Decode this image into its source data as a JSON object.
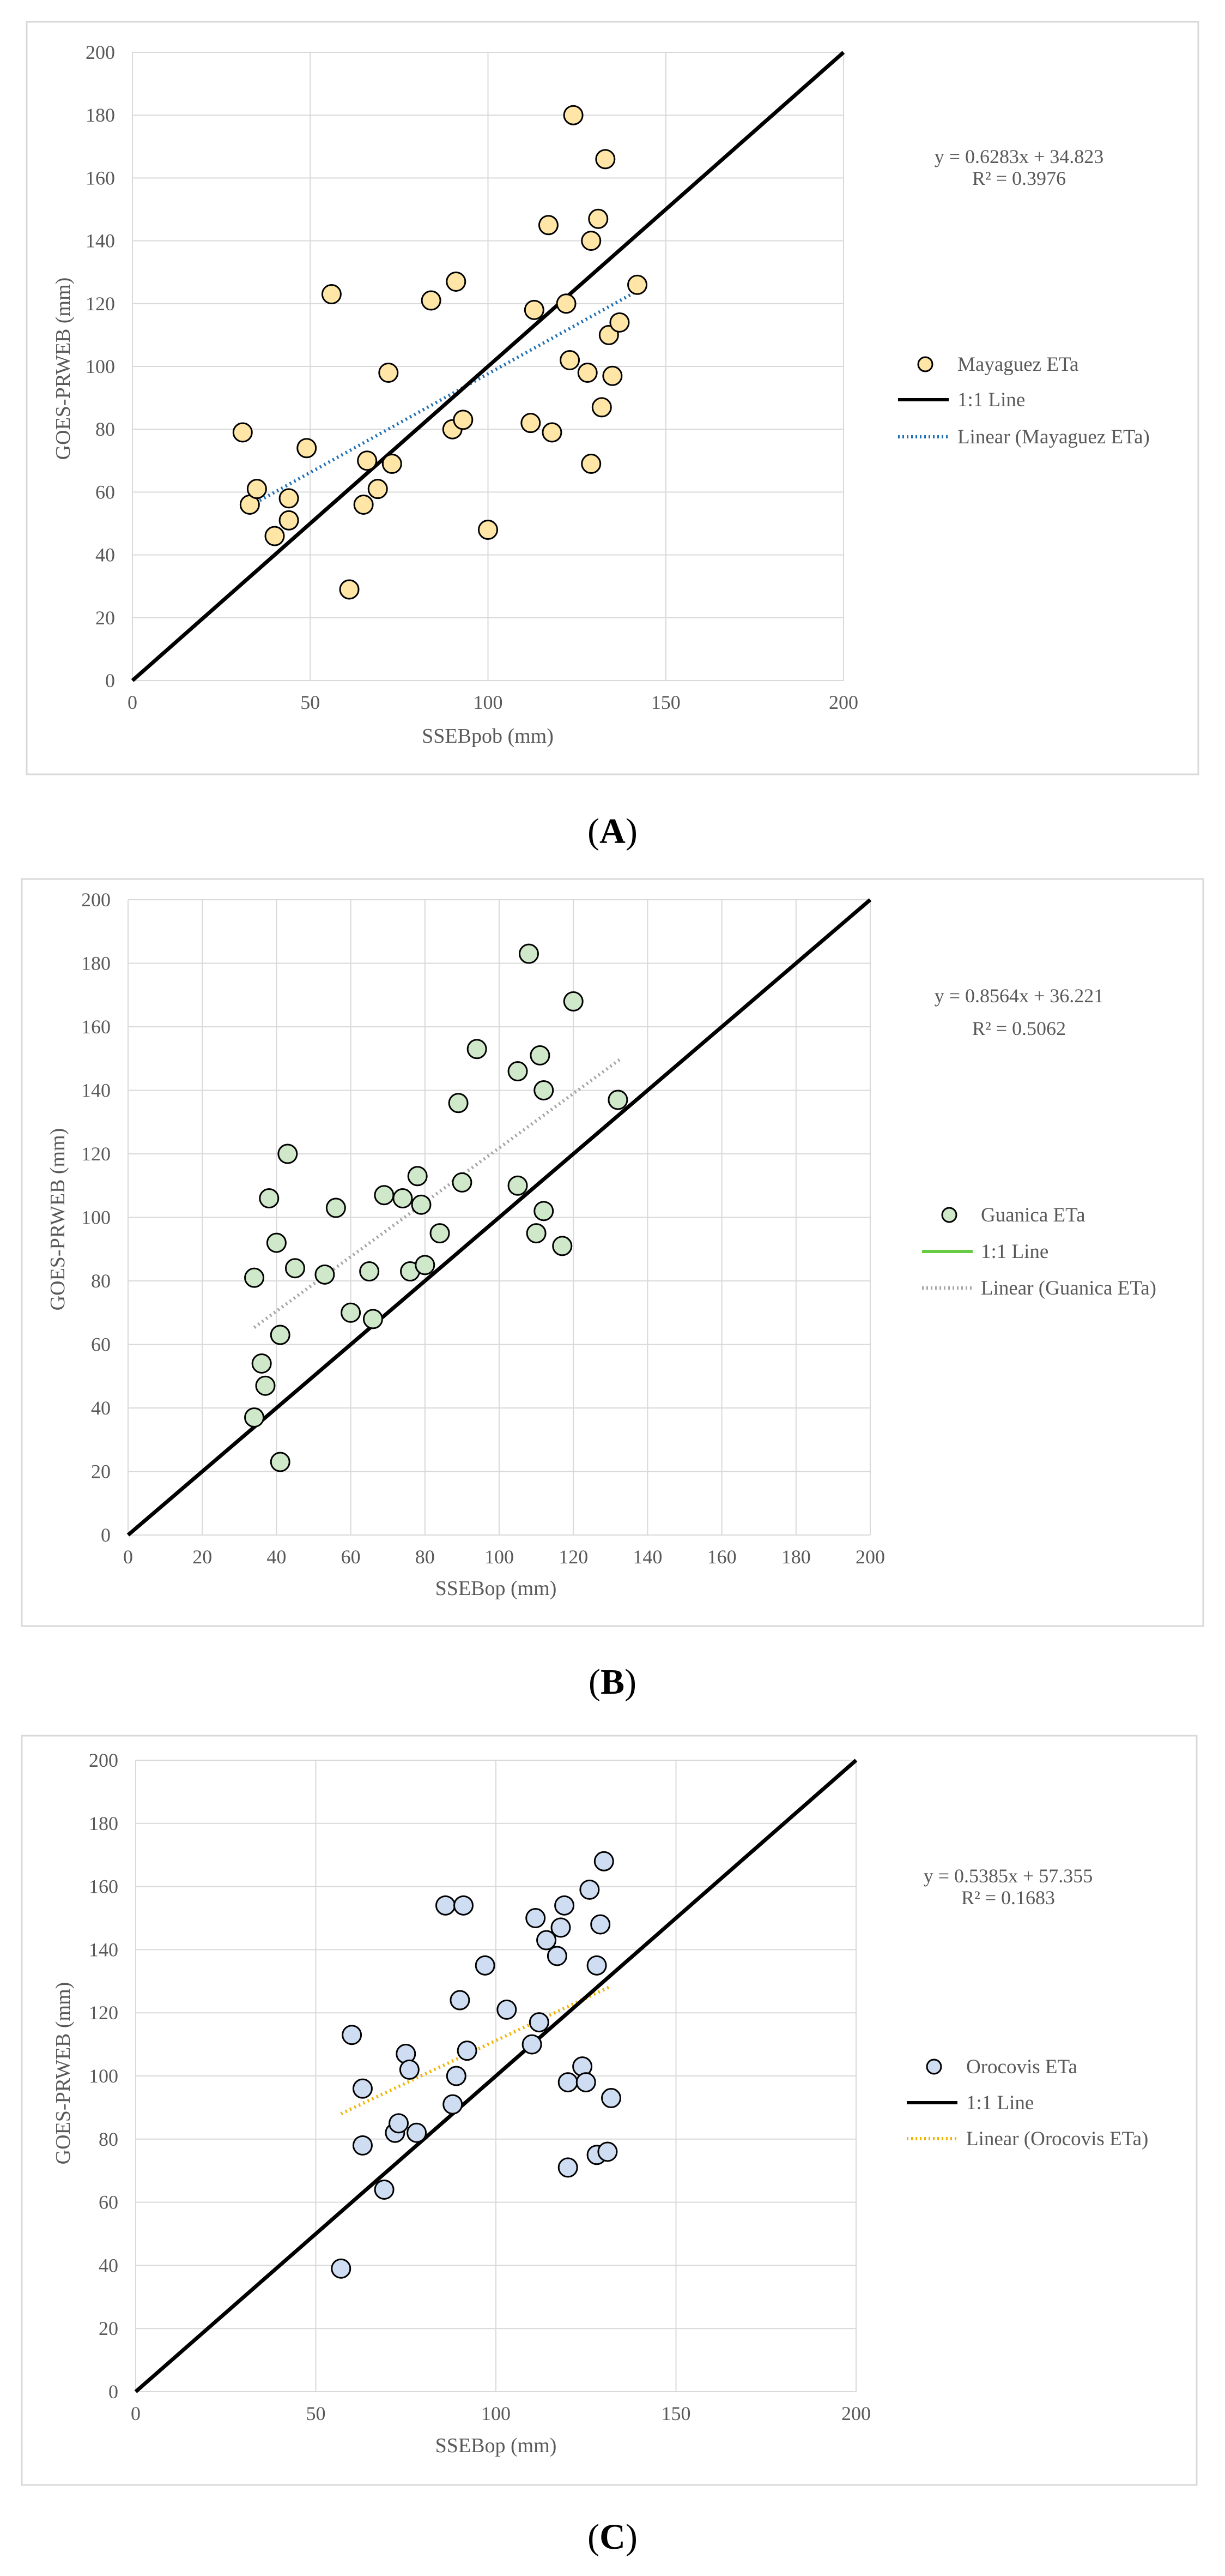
{
  "chart_data": [
    {
      "panel": "A",
      "caption_open": "(",
      "caption_letter": "A",
      "caption_close": ")",
      "type": "scatter",
      "title": "",
      "xlabel": "SSEBpob (mm)",
      "ylabel": "GOES-PRWEB (mm)",
      "xlim": [
        0,
        200
      ],
      "ylim": [
        0,
        200
      ],
      "xticks": [
        0,
        50,
        100,
        150,
        200
      ],
      "yticks": [
        0,
        20,
        40,
        60,
        80,
        100,
        120,
        140,
        160,
        180,
        200
      ],
      "grid": true,
      "equation": "y = 0.6283x + 34.823",
      "r2": "R² = 0.3976",
      "slope": 0.6283,
      "intercept": 34.823,
      "trend_range": [
        31,
        142
      ],
      "legend": {
        "points": "Mayaguez ETa",
        "line": "1:1 Line",
        "trend": "Linear (Mayaguez ETa)"
      },
      "colors": {
        "marker": "#ffe6a6",
        "trend": "#1f6fb5",
        "legend_line": "#000000"
      },
      "points": [
        [
          31,
          79
        ],
        [
          33,
          56
        ],
        [
          35,
          61
        ],
        [
          40,
          46
        ],
        [
          44,
          58
        ],
        [
          44,
          51
        ],
        [
          49,
          74
        ],
        [
          56,
          123
        ],
        [
          61,
          29
        ],
        [
          65,
          56
        ],
        [
          66,
          70
        ],
        [
          69,
          61
        ],
        [
          72,
          98
        ],
        [
          73,
          69
        ],
        [
          84,
          121
        ],
        [
          90,
          80
        ],
        [
          91,
          127
        ],
        [
          93,
          83
        ],
        [
          100,
          48
        ],
        [
          112,
          82
        ],
        [
          113,
          118
        ],
        [
          117,
          145
        ],
        [
          118,
          79
        ],
        [
          122,
          120
        ],
        [
          123,
          102
        ],
        [
          124,
          180
        ],
        [
          128,
          98
        ],
        [
          129,
          69
        ],
        [
          129,
          140
        ],
        [
          131,
          147
        ],
        [
          132,
          87
        ],
        [
          133,
          166
        ],
        [
          134,
          110
        ],
        [
          135,
          97
        ],
        [
          137,
          114
        ],
        [
          142,
          126
        ]
      ]
    },
    {
      "panel": "B",
      "caption_open": "(",
      "caption_letter": "B",
      "caption_close": ")",
      "type": "scatter",
      "title": "",
      "xlabel": "SSEBop (mm)",
      "ylabel": "GOES-PRWEB (mm)",
      "xlim": [
        0,
        200
      ],
      "ylim": [
        0,
        200
      ],
      "xticks": [
        0,
        20,
        40,
        60,
        80,
        100,
        120,
        140,
        160,
        180,
        200
      ],
      "yticks": [
        0,
        20,
        40,
        60,
        80,
        100,
        120,
        140,
        160,
        180,
        200
      ],
      "grid": true,
      "equation": "y = 0.8564x + 36.221",
      "r2": "R² = 0.5062",
      "slope": 0.8564,
      "intercept": 36.221,
      "trend_range": [
        34,
        133
      ],
      "legend": {
        "points": "Guanica ETa",
        "line": "1:1 Line",
        "trend": "Linear (Guanica ETa)"
      },
      "colors": {
        "marker": "#cfe8c9",
        "trend": "#a6a6a6",
        "legend_line": "#66cc44"
      },
      "points": [
        [
          34,
          81
        ],
        [
          34,
          37
        ],
        [
          36,
          54
        ],
        [
          37,
          47
        ],
        [
          38,
          106
        ],
        [
          40,
          92
        ],
        [
          41,
          63
        ],
        [
          41,
          23
        ],
        [
          43,
          120
        ],
        [
          45,
          84
        ],
        [
          53,
          82
        ],
        [
          56,
          103
        ],
        [
          60,
          70
        ],
        [
          65,
          83
        ],
        [
          66,
          68
        ],
        [
          69,
          107
        ],
        [
          74,
          106
        ],
        [
          76,
          83
        ],
        [
          78,
          113
        ],
        [
          79,
          104
        ],
        [
          80,
          85
        ],
        [
          84,
          95
        ],
        [
          89,
          136
        ],
        [
          90,
          111
        ],
        [
          94,
          153
        ],
        [
          105,
          146
        ],
        [
          105,
          110
        ],
        [
          108,
          183
        ],
        [
          110,
          95
        ],
        [
          111,
          151
        ],
        [
          112,
          140
        ],
        [
          112,
          102
        ],
        [
          117,
          91
        ],
        [
          120,
          168
        ],
        [
          132,
          137
        ]
      ]
    },
    {
      "panel": "C",
      "caption_open": "(",
      "caption_letter": "C",
      "caption_close": ")",
      "type": "scatter",
      "title": "",
      "xlabel": "SSEBop (mm)",
      "ylabel": "GOES-PRWEB (mm)",
      "xlim": [
        0,
        200
      ],
      "ylim": [
        0,
        200
      ],
      "xticks": [
        0,
        50,
        100,
        150,
        200
      ],
      "yticks": [
        0,
        20,
        40,
        60,
        80,
        100,
        120,
        140,
        160,
        180,
        200
      ],
      "grid": true,
      "equation": "y = 0.5385x + 57.355",
      "r2": "R² = 0.1683",
      "slope": 0.5385,
      "intercept": 57.355,
      "trend_range": [
        57,
        132
      ],
      "legend": {
        "points": "Orocovis ETa",
        "line": "1:1 Line",
        "trend": "Linear (Orocovis ETa)"
      },
      "colors": {
        "marker": "#cfddf3",
        "trend": "#f0b400",
        "legend_line": "#000000"
      },
      "points": [
        [
          57,
          39
        ],
        [
          60,
          113
        ],
        [
          63,
          96
        ],
        [
          63,
          78
        ],
        [
          69,
          64
        ],
        [
          72,
          82
        ],
        [
          73,
          85
        ],
        [
          75,
          107
        ],
        [
          76,
          102
        ],
        [
          78,
          82
        ],
        [
          86,
          154
        ],
        [
          88,
          91
        ],
        [
          89,
          100
        ],
        [
          90,
          124
        ],
        [
          91,
          154
        ],
        [
          92,
          108
        ],
        [
          97,
          135
        ],
        [
          103,
          121
        ],
        [
          110,
          110
        ],
        [
          111,
          150
        ],
        [
          112,
          117
        ],
        [
          114,
          143
        ],
        [
          117,
          138
        ],
        [
          118,
          147
        ],
        [
          119,
          154
        ],
        [
          120,
          71
        ],
        [
          120,
          98
        ],
        [
          124,
          103
        ],
        [
          125,
          98
        ],
        [
          126,
          159
        ],
        [
          128,
          75
        ],
        [
          128,
          135
        ],
        [
          129,
          148
        ],
        [
          130,
          168
        ],
        [
          131,
          76
        ],
        [
          132,
          93
        ]
      ]
    }
  ]
}
